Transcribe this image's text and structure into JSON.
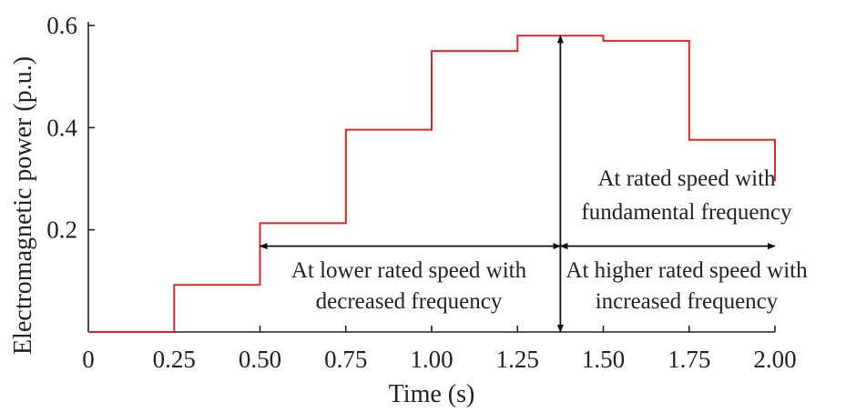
{
  "chart_data": {
    "type": "line",
    "line_shape": "step",
    "xlabel": "Time (s)",
    "ylabel": "Electromagnetic power (p.u.)",
    "xlim": [
      0,
      2.0
    ],
    "ylim": [
      0,
      0.6
    ],
    "xticks": [
      "0",
      "0.25",
      "0.50",
      "0.75",
      "1.00",
      "1.25",
      "1.50",
      "1.75",
      "2.00"
    ],
    "yticks": [
      "0.2",
      "0.4",
      "0.6"
    ],
    "grid": false,
    "series_color": "#d42a2a",
    "series": [
      {
        "x": [
          0,
          0.25,
          0.25,
          0.5,
          0.5,
          0.75,
          0.75,
          1.0,
          1.0,
          1.25,
          1.25,
          1.5,
          1.5,
          1.75,
          1.75,
          2.0,
          2.0
        ],
        "y": [
          0,
          0,
          0.092,
          0.092,
          0.213,
          0.213,
          0.396,
          0.396,
          0.55,
          0.55,
          0.58,
          0.58,
          0.57,
          0.57,
          0.376,
          0.376,
          0.295
        ]
      }
    ],
    "annotations": {
      "rated": [
        "At rated speed with",
        "fundamental frequency"
      ],
      "lower": [
        "At lower rated speed with",
        "decreased frequency"
      ],
      "higher": [
        "At higher rated speed with",
        "increased frequency"
      ]
    },
    "arrows": {
      "vertical_x": 1.375,
      "vertical_y_range": [
        0,
        0.58
      ],
      "horizontal_y": 0.168,
      "left_span": [
        0.5,
        1.375
      ],
      "right_span": [
        1.375,
        2.0
      ]
    }
  }
}
